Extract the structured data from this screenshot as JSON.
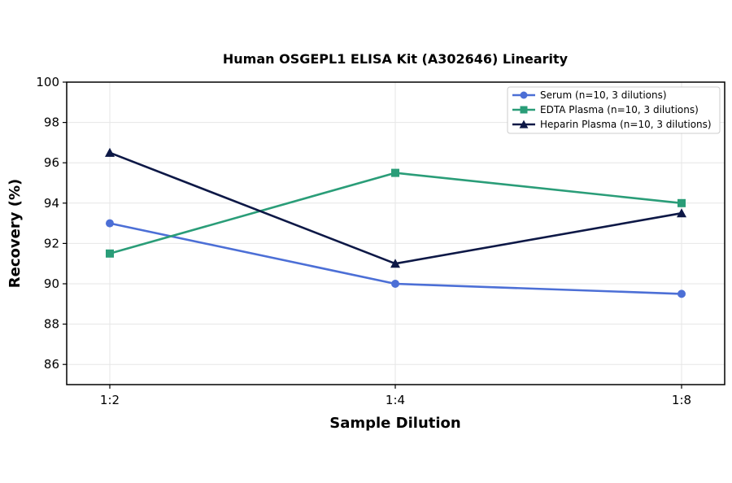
{
  "chart_data": {
    "type": "line",
    "title": "Human OSGEPL1 ELISA Kit (A302646) Linearity",
    "xlabel": "Sample Dilution",
    "ylabel": "Recovery (%)",
    "categories": [
      "1:2",
      "1:4",
      "1:8"
    ],
    "ylim": [
      85,
      100
    ],
    "yticks": [
      86,
      88,
      90,
      92,
      94,
      96,
      98,
      100
    ],
    "grid": true,
    "legend_position": "top-right",
    "series": [
      {
        "name": "Serum (n=10, 3 dilutions)",
        "values": [
          93.0,
          90.0,
          89.5
        ],
        "color": "#4c6fd6",
        "marker": "circle"
      },
      {
        "name": "EDTA Plasma (n=10, 3 dilutions)",
        "values": [
          91.5,
          95.5,
          94.0
        ],
        "color": "#2a9d78",
        "marker": "square"
      },
      {
        "name": "Heparin Plasma (n=10, 3 dilutions)",
        "values": [
          96.5,
          91.0,
          93.5
        ],
        "color": "#0d1846",
        "marker": "triangle"
      }
    ]
  }
}
